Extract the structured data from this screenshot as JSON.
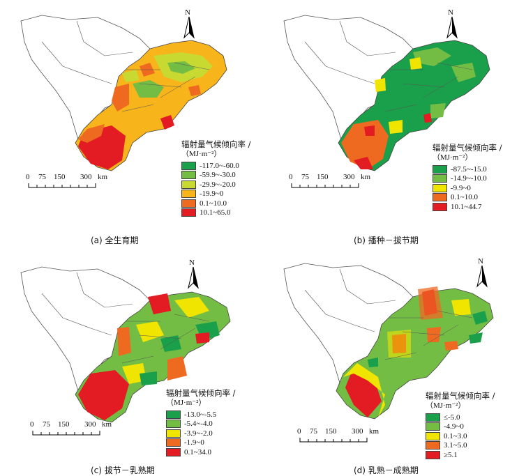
{
  "legend_title": "辐射量气候倾向率 /",
  "legend_unit": "（MJ·m⁻²）",
  "north_label": "N",
  "scale": {
    "ticks": [
      "0",
      "75",
      "150",
      "300"
    ],
    "unit": "km"
  },
  "colors": {
    "dark_green": "#1aa04a",
    "green": "#74bd44",
    "yellow": "#f0e500",
    "orange": "#f7a21b",
    "orange_red": "#ef6a21",
    "red": "#e31b23"
  },
  "panels": [
    {
      "caption": "(a)  全生育期",
      "legend": [
        {
          "label": "-117.0~-60.0",
          "color": "#1aa04a"
        },
        {
          "label": "-59.9~-30.0",
          "color": "#74bd44"
        },
        {
          "label": "-29.9~-20.0",
          "color": "#c8d932"
        },
        {
          "label": "-19.9~0",
          "color": "#f7b41b"
        },
        {
          "label": "0.1~10.0",
          "color": "#ef6a21"
        },
        {
          "label": "10.1~65.0",
          "color": "#e31b23"
        }
      ]
    },
    {
      "caption": "(b)  播种－拔节期",
      "legend": [
        {
          "label": "-87.5~-15.0",
          "color": "#1aa04a"
        },
        {
          "label": "-14.9~-10.0",
          "color": "#74bd44"
        },
        {
          "label": "-9.9~0",
          "color": "#f0e500"
        },
        {
          "label": "0.1~10.0",
          "color": "#ef6a21"
        },
        {
          "label": "10.1~44.7",
          "color": "#e31b23"
        }
      ]
    },
    {
      "caption": "(c)  拔节－乳熟期",
      "legend": [
        {
          "label": "-13.0~-5.5",
          "color": "#1aa04a"
        },
        {
          "label": "-5.4~-4.0",
          "color": "#74bd44"
        },
        {
          "label": "-3.9~-2.0",
          "color": "#f0e500"
        },
        {
          "label": "-1.9~0",
          "color": "#ef6a21"
        },
        {
          "label": "0.1~34.0",
          "color": "#e31b23"
        }
      ]
    },
    {
      "caption": "(d)  乳熟－成熟期",
      "legend": [
        {
          "label": "≤-5.0",
          "color": "#1aa04a"
        },
        {
          "label": "-4.9~0",
          "color": "#74bd44"
        },
        {
          "label": "0.1~3.0",
          "color": "#f0e500"
        },
        {
          "label": "3.1~5.0",
          "color": "#ef6a21"
        },
        {
          "label": "≥5.1",
          "color": "#e31b23"
        }
      ]
    }
  ]
}
